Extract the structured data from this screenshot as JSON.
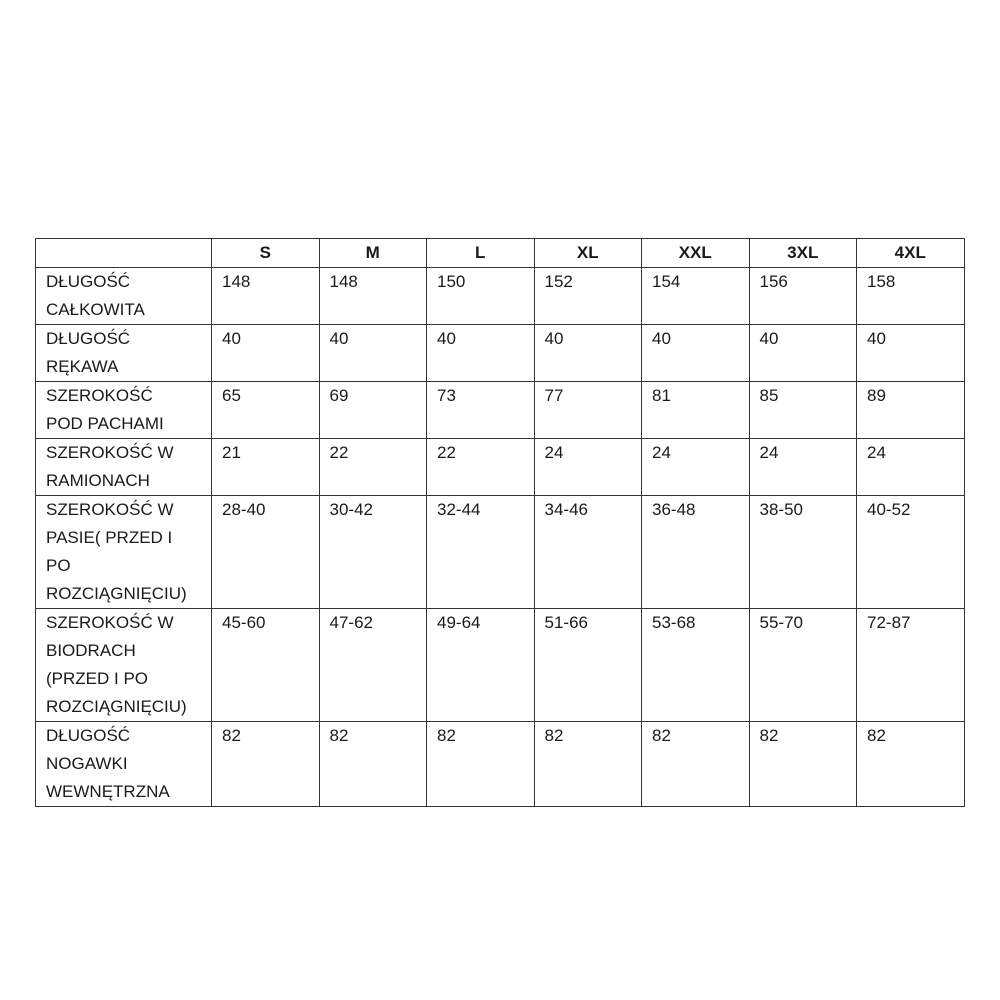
{
  "table": {
    "headers": [
      "",
      "S",
      "M",
      "L",
      "XL",
      "XXL",
      "3XL",
      "4XL"
    ],
    "rows": [
      {
        "label": "DŁUGOŚĆ\nCAŁKOWITA",
        "values": [
          "148",
          "148",
          "150",
          "152",
          "154",
          "156",
          "158"
        ]
      },
      {
        "label": "DŁUGOŚĆ\nRĘKAWA",
        "values": [
          "40",
          "40",
          "40",
          "40",
          "40",
          "40",
          "40"
        ]
      },
      {
        "label": "SZEROKOŚĆ\nPOD PACHAMI",
        "values": [
          "65",
          "69",
          "73",
          "77",
          "81",
          "85",
          "89"
        ]
      },
      {
        "label": "SZEROKOŚĆ W\nRAMIONACH",
        "values": [
          "21",
          "22",
          "22",
          "24",
          "24",
          "24",
          "24"
        ]
      },
      {
        "label": "SZEROKOŚĆ W\nPASIE( PRZED I\nPO\nROZCIĄGNIĘCIU)",
        "values": [
          "28-40",
          "30-42",
          "32-44",
          "34-46",
          "36-48",
          "38-50",
          "40-52"
        ]
      },
      {
        "label": "SZEROKOŚĆ W\nBIODRACH\n(PRZED I PO\nROZCIĄGNIĘCIU)",
        "values": [
          "45-60",
          "47-62",
          "49-64",
          "51-66",
          "53-68",
          "55-70",
          "72-87"
        ]
      },
      {
        "label": "DŁUGOŚĆ\nNOGAWKI\nWEWNĘTRZNA",
        "values": [
          "82",
          "82",
          "82",
          "82",
          "82",
          "82",
          "82"
        ]
      }
    ]
  }
}
